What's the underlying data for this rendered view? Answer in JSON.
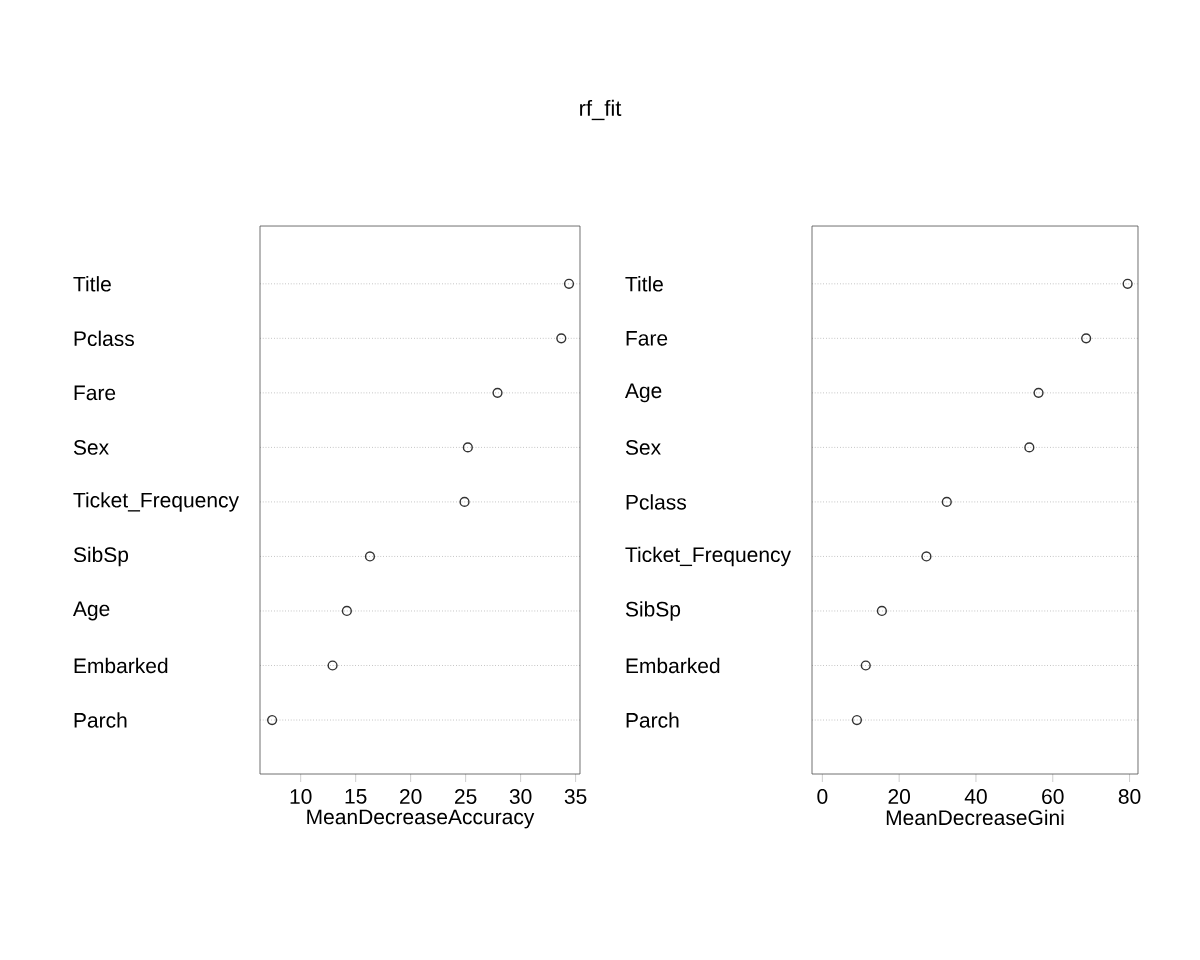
{
  "chart_data": [
    {
      "type": "scatter",
      "title": "rf_fit",
      "orientation": "horizontal",
      "xlabel": "MeanDecreaseAccuracy",
      "categories": [
        "Title",
        "Pclass",
        "Fare",
        "Sex",
        "Ticket_Frequency",
        "SibSp",
        "Age",
        "Embarked",
        "Parch"
      ],
      "values": [
        34.4,
        33.7,
        27.9,
        25.2,
        24.9,
        16.3,
        14.2,
        12.9,
        7.4
      ],
      "color": "#333333",
      "marker": "circle",
      "grid": "y",
      "xlim": [
        6.3,
        35.4
      ],
      "xticks": [
        10,
        15,
        20,
        25,
        30,
        35
      ]
    },
    {
      "type": "scatter",
      "orientation": "horizontal",
      "xlabel": "MeanDecreaseGini",
      "categories": [
        "Title",
        "Fare",
        "Age",
        "Sex",
        "Pclass",
        "Ticket_Frequency",
        "SibSp",
        "Embarked",
        "Parch"
      ],
      "values": [
        79.5,
        68.7,
        56.3,
        53.9,
        32.4,
        27.1,
        15.5,
        11.3,
        9.0
      ],
      "color": "#333333",
      "marker": "circle",
      "grid": "y",
      "xlim": [
        -2.7,
        82.2
      ],
      "xticks": [
        0,
        20,
        40,
        60,
        80
      ]
    }
  ]
}
